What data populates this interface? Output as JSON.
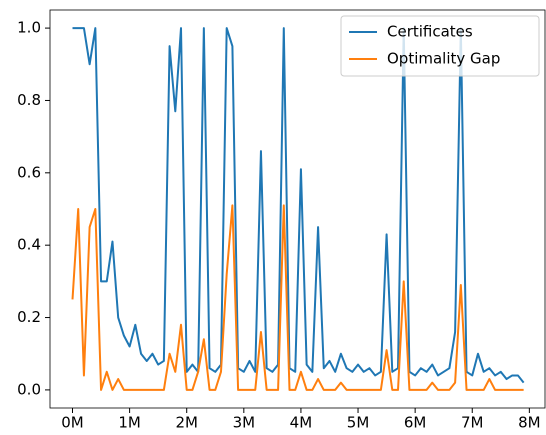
{
  "chart_data": {
    "type": "line",
    "x": [
      0,
      100000,
      200000,
      300000,
      400000,
      500000,
      600000,
      700000,
      800000,
      900000,
      1000000,
      1100000,
      1200000,
      1300000,
      1400000,
      1500000,
      1600000,
      1700000,
      1800000,
      1900000,
      2000000,
      2100000,
      2200000,
      2300000,
      2400000,
      2500000,
      2600000,
      2700000,
      2800000,
      2900000,
      3000000,
      3100000,
      3200000,
      3300000,
      3400000,
      3500000,
      3600000,
      3700000,
      3800000,
      3900000,
      4000000,
      4100000,
      4200000,
      4300000,
      4400000,
      4500000,
      4600000,
      4700000,
      4800000,
      4900000,
      5000000,
      5100000,
      5200000,
      5300000,
      5400000,
      5500000,
      5600000,
      5700000,
      5800000,
      5900000,
      6000000,
      6100000,
      6200000,
      6300000,
      6400000,
      6500000,
      6600000,
      6700000,
      6800000,
      6900000,
      7000000,
      7100000,
      7200000,
      7300000,
      7400000,
      7500000,
      7600000,
      7700000,
      7800000,
      7900000
    ],
    "series": [
      {
        "name": "Certificates",
        "color": "#1f77b4",
        "values": [
          1,
          1,
          1,
          0.9,
          1,
          0.3,
          0.3,
          0.41,
          0.2,
          0.15,
          0.12,
          0.18,
          0.1,
          0.08,
          0.1,
          0.07,
          0.08,
          0.95,
          0.77,
          1,
          0.05,
          0.07,
          0.05,
          1,
          0.06,
          0.05,
          0.07,
          1,
          0.95,
          0.06,
          0.05,
          0.08,
          0.05,
          0.66,
          0.06,
          0.05,
          0.07,
          1,
          0.06,
          0.05,
          0.61,
          0.07,
          0.05,
          0.45,
          0.06,
          0.08,
          0.05,
          0.1,
          0.06,
          0.05,
          0.07,
          0.05,
          0.06,
          0.04,
          0.05,
          0.43,
          0.05,
          0.06,
          1,
          0.05,
          0.04,
          0.06,
          0.05,
          0.07,
          0.04,
          0.05,
          0.06,
          0.16,
          1,
          0.05,
          0.04,
          0.1,
          0.05,
          0.06,
          0.04,
          0.05,
          0.03,
          0.04,
          0.04,
          0.02
        ]
      },
      {
        "name": "Optimality Gap",
        "color": "#ff7f0e",
        "values": [
          0.25,
          0.5,
          0.04,
          0.45,
          0.5,
          0,
          0.05,
          0,
          0.03,
          0,
          0,
          0,
          0,
          0,
          0,
          0,
          0,
          0.1,
          0.05,
          0.18,
          0,
          0,
          0.05,
          0.14,
          0,
          0,
          0.05,
          0.32,
          0.51,
          0,
          0,
          0,
          0,
          0.16,
          0,
          0,
          0,
          0.51,
          0,
          0,
          0.05,
          0,
          0,
          0.03,
          0,
          0,
          0,
          0.02,
          0,
          0,
          0,
          0,
          0,
          0,
          0,
          0.11,
          0,
          0,
          0.3,
          0,
          0,
          0,
          0,
          0.02,
          0,
          0,
          0,
          0.02,
          0.29,
          0,
          0,
          0,
          0,
          0.03,
          0,
          0,
          0,
          0,
          0,
          0
        ]
      }
    ],
    "xlim": [
      -394000,
      8274000
    ],
    "ylim": [
      -0.05,
      1.05
    ],
    "xticks": [
      {
        "value": 0,
        "label": "0M"
      },
      {
        "value": 1000000,
        "label": "1M"
      },
      {
        "value": 2000000,
        "label": "2M"
      },
      {
        "value": 3000000,
        "label": "3M"
      },
      {
        "value": 4000000,
        "label": "4M"
      },
      {
        "value": 5000000,
        "label": "5M"
      },
      {
        "value": 6000000,
        "label": "6M"
      },
      {
        "value": 7000000,
        "label": "7M"
      },
      {
        "value": 8000000,
        "label": "8M"
      }
    ],
    "yticks": [
      {
        "value": 0,
        "label": "0.0"
      },
      0.2,
      0.4,
      0.6,
      0.8,
      {
        "value": 1,
        "label": "1.0"
      }
    ],
    "legend": "upper right"
  }
}
